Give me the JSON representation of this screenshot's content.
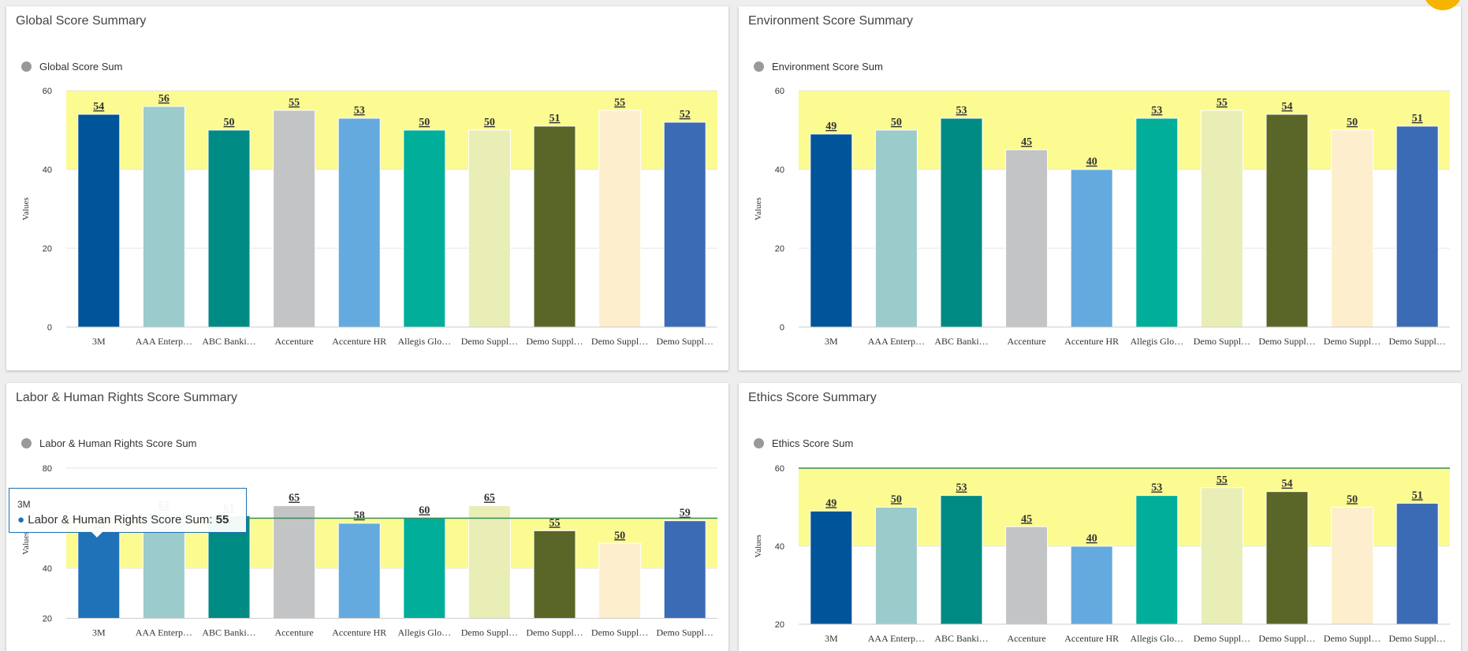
{
  "axis_label": "Values",
  "colors": {
    "band": "#fbfb92",
    "grid": "#e6e6e6",
    "bar_palette": [
      "#00549a",
      "#9ccbcc",
      "#008a84",
      "#c3c4c6",
      "#65aadf",
      "#00ae9a",
      "#e9eeb7",
      "#5a6628",
      "#fdeecd",
      "#3c6bb5"
    ],
    "highlight_bar": "#1f72b8",
    "limit_line": "#3b8a55"
  },
  "panels": [
    {
      "title": "Global Score Summary",
      "legend": "Global Score Sum"
    },
    {
      "title": "Environment Score Summary",
      "legend": "Environment Score Sum"
    },
    {
      "title": "Labor & Human Rights Score Summary",
      "legend": "Labor & Human Rights Score Sum"
    },
    {
      "title": "Ethics Score Summary",
      "legend": "Ethics Score Sum"
    }
  ],
  "tooltip": {
    "header": "3M",
    "series": "Labor & Human Rights Score Sum:",
    "value": "55"
  },
  "chart_data": [
    {
      "type": "bar",
      "title": "Global Score Summary",
      "categories": [
        "3M",
        "AAA Enterp…",
        "ABC Banki…",
        "Accenture",
        "Accenture HR",
        "Allegis Glo…",
        "Demo Suppl…",
        "Demo Suppl…",
        "Demo Suppl…",
        "Demo Suppl…"
      ],
      "series": [
        {
          "name": "Global Score Sum",
          "values": [
            54,
            56,
            50,
            55,
            53,
            50,
            50,
            51,
            55,
            52
          ]
        }
      ],
      "ylabel": "Values",
      "yticks": [
        0,
        20,
        40,
        60
      ],
      "ylim": [
        0,
        60
      ],
      "band": [
        40,
        60
      ]
    },
    {
      "type": "bar",
      "title": "Environment Score Summary",
      "categories": [
        "3M",
        "AAA Enterp…",
        "ABC Banki…",
        "Accenture",
        "Accenture HR",
        "Allegis Glo…",
        "Demo Suppl…",
        "Demo Suppl…",
        "Demo Suppl…",
        "Demo Suppl…"
      ],
      "series": [
        {
          "name": "Environment Score Sum",
          "values": [
            49,
            50,
            53,
            45,
            40,
            53,
            55,
            54,
            50,
            51
          ]
        }
      ],
      "ylabel": "Values",
      "yticks": [
        0,
        20,
        40,
        60
      ],
      "ylim": [
        0,
        60
      ],
      "band": [
        40,
        60
      ]
    },
    {
      "type": "bar",
      "title": "Labor & Human Rights Score Summary",
      "categories": [
        "3M",
        "AAA Enterp…",
        "ABC Banki…",
        "Accenture",
        "Accenture HR",
        "Allegis Glo…",
        "Demo Suppl…",
        "Demo Suppl…",
        "Demo Suppl…",
        "Demo Suppl…"
      ],
      "series": [
        {
          "name": "Labor & Human Rights Score Sum",
          "values": [
            55,
            62,
            61,
            65,
            58,
            60,
            65,
            55,
            50,
            59
          ]
        }
      ],
      "ylabel": "Values",
      "yticks": [
        20,
        40,
        60,
        80
      ],
      "ylim": [
        20,
        80
      ],
      "band": [
        40,
        60
      ],
      "reference_line": 60,
      "highlighted": 0
    },
    {
      "type": "bar",
      "title": "Ethics Score Summary",
      "categories": [
        "3M",
        "AAA Enterp…",
        "ABC Banki…",
        "Accenture",
        "Accenture HR",
        "Allegis Glo…",
        "Demo Suppl…",
        "Demo Suppl…",
        "Demo Suppl…",
        "Demo Suppl…"
      ],
      "series": [
        {
          "name": "Ethics Score Sum",
          "values": [
            49,
            50,
            53,
            45,
            40,
            53,
            55,
            54,
            50,
            51
          ]
        }
      ],
      "ylabel": "Values",
      "yticks": [
        20,
        40,
        60
      ],
      "ylim": [
        20,
        60
      ],
      "band": [
        40,
        60
      ],
      "reference_line": 60
    }
  ]
}
